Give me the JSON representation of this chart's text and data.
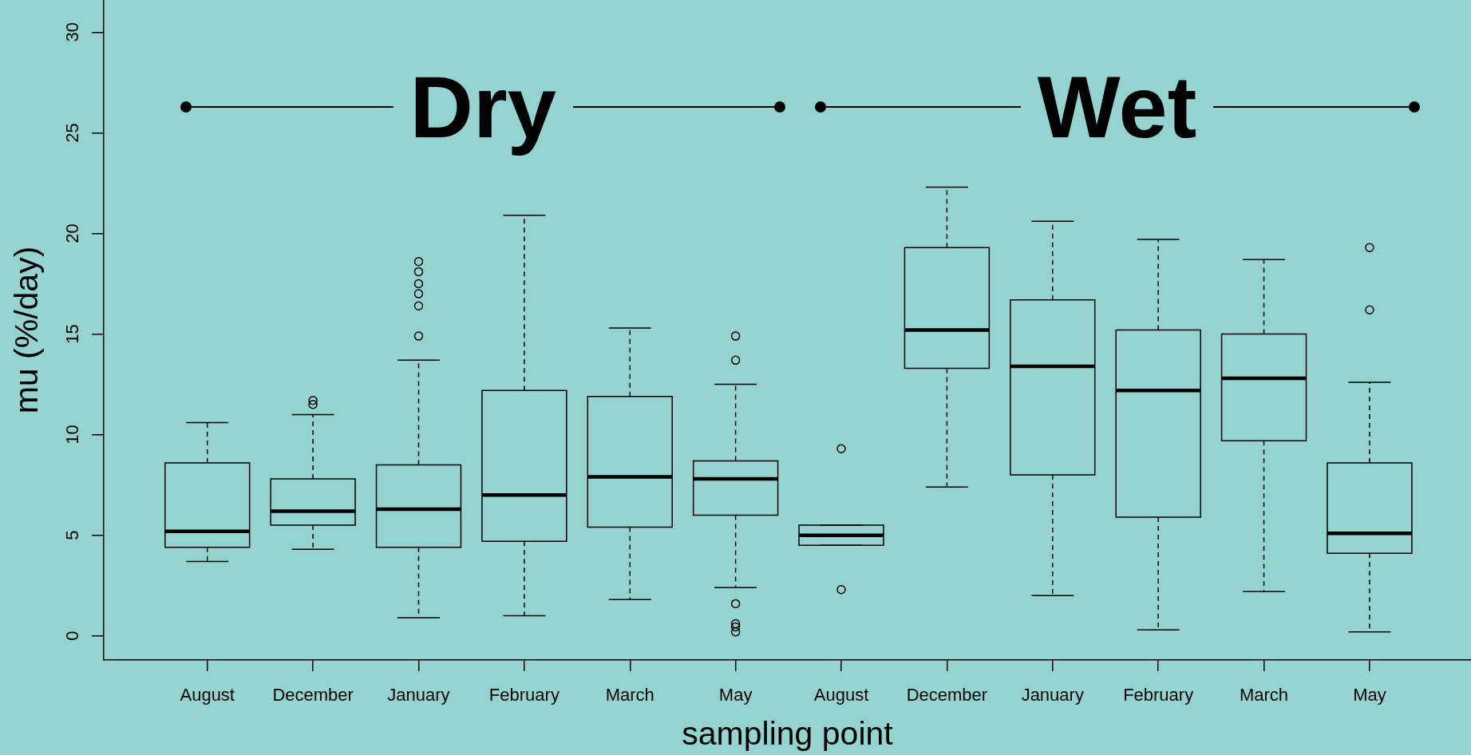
{
  "chart_data": {
    "type": "box",
    "xlabel": "sampling point",
    "ylabel": "mu (%/day)",
    "color": "#000000",
    "categories": [
      "August",
      "December",
      "January",
      "February",
      "March",
      "May",
      "August",
      "December",
      "January",
      "February",
      "March",
      "May"
    ],
    "boxes": [
      {
        "low": 3.7,
        "q1": 4.4,
        "median": 5.2,
        "q3": 8.6,
        "high": 10.6
      },
      {
        "low": 4.3,
        "q1": 5.5,
        "median": 6.2,
        "q3": 7.8,
        "high": 11.0,
        "outliers": [
          11.5,
          11.7
        ]
      },
      {
        "low": 0.9,
        "q1": 4.4,
        "median": 6.3,
        "q3": 8.5,
        "high": 13.7,
        "outliers": [
          14.9,
          16.4,
          17.0,
          17.5,
          18.1,
          18.6
        ]
      },
      {
        "low": 1.0,
        "q1": 4.7,
        "median": 7.0,
        "q3": 12.2,
        "high": 20.9
      },
      {
        "low": 1.8,
        "q1": 5.4,
        "median": 7.9,
        "q3": 11.9,
        "high": 15.3
      },
      {
        "low": 2.4,
        "q1": 6.0,
        "median": 7.8,
        "q3": 8.7,
        "high": 12.5,
        "outliers": [
          0.2,
          0.45,
          0.6,
          1.6,
          13.7,
          14.9
        ]
      },
      {
        "low": 4.5,
        "q1": 4.5,
        "median": 5.0,
        "q3": 5.5,
        "high": 5.5,
        "outliers": [
          2.3,
          9.3
        ]
      },
      {
        "low": 7.4,
        "q1": 13.3,
        "median": 15.2,
        "q3": 19.3,
        "high": 22.3
      },
      {
        "low": 2.0,
        "q1": 8.0,
        "median": 13.4,
        "q3": 16.7,
        "high": 20.6
      },
      {
        "low": 0.3,
        "q1": 5.9,
        "median": 12.2,
        "q3": 15.2,
        "high": 19.7
      },
      {
        "low": 2.2,
        "q1": 9.7,
        "median": 12.8,
        "q3": 15.0,
        "high": 18.7
      },
      {
        "low": 0.2,
        "q1": 4.1,
        "median": 5.1,
        "q3": 8.6,
        "high": 12.6,
        "outliers": [
          16.2,
          19.3
        ]
      }
    ],
    "ylim": [
      -1.2,
      31.6
    ],
    "yticks": [
      0,
      5,
      10,
      15,
      20,
      25,
      30
    ],
    "annotations": [
      "Dry",
      "Wet"
    ]
  }
}
